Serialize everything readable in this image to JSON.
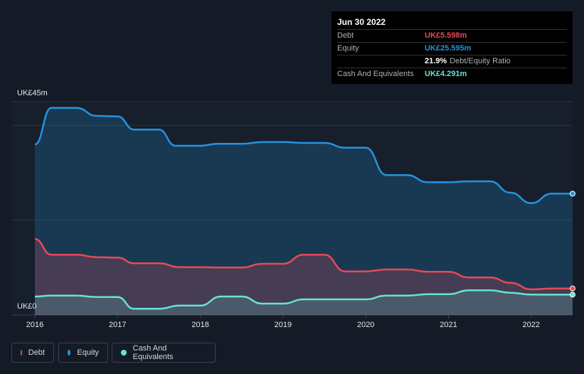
{
  "chart_data": {
    "type": "area",
    "x_ticks": [
      "2016",
      "2017",
      "2018",
      "2019",
      "2020",
      "2021",
      "2022"
    ],
    "y_ticks": [
      "UK£45m",
      "UK£0"
    ],
    "ylim": [
      0,
      45
    ],
    "grid": true,
    "series": [
      {
        "name": "Equity",
        "color": "#2394df",
        "x": [
          2016.0,
          2016.2,
          2016.5,
          2016.75,
          2017.0,
          2017.2,
          2017.5,
          2017.7,
          2018.0,
          2018.2,
          2018.5,
          2018.75,
          2019.0,
          2019.25,
          2019.5,
          2019.75,
          2020.0,
          2020.25,
          2020.5,
          2020.75,
          2021.0,
          2021.25,
          2021.5,
          2021.75,
          2022.0,
          2022.25,
          2022.5
        ],
        "values": [
          36.0,
          43.7,
          43.7,
          42.0,
          41.9,
          39.1,
          39.1,
          35.7,
          35.7,
          36.1,
          36.1,
          36.5,
          36.5,
          36.3,
          36.3,
          35.3,
          35.3,
          29.5,
          29.5,
          28.0,
          28.0,
          28.2,
          28.2,
          25.8,
          23.6,
          25.6,
          25.595
        ]
      },
      {
        "name": "Debt",
        "color": "#e64a57",
        "x": [
          2016.0,
          2016.2,
          2016.5,
          2016.75,
          2017.0,
          2017.2,
          2017.5,
          2017.75,
          2018.0,
          2018.25,
          2018.5,
          2018.75,
          2019.0,
          2019.25,
          2019.5,
          2019.75,
          2020.0,
          2020.25,
          2020.5,
          2020.75,
          2021.0,
          2021.25,
          2021.5,
          2021.75,
          2022.0,
          2022.25,
          2022.5
        ],
        "values": [
          16.0,
          12.7,
          12.7,
          12.2,
          12.1,
          10.9,
          10.9,
          10.1,
          10.1,
          10.0,
          10.0,
          10.8,
          10.8,
          12.7,
          12.7,
          9.2,
          9.2,
          9.6,
          9.6,
          9.1,
          9.1,
          7.9,
          7.9,
          6.8,
          5.4,
          5.6,
          5.598
        ]
      },
      {
        "name": "Cash And Equivalents",
        "color": "#66e4d3",
        "x": [
          2016.0,
          2016.2,
          2016.5,
          2016.75,
          2017.0,
          2017.2,
          2017.5,
          2017.75,
          2018.0,
          2018.25,
          2018.5,
          2018.75,
          2019.0,
          2019.25,
          2019.5,
          2019.75,
          2020.0,
          2020.25,
          2020.5,
          2020.75,
          2021.0,
          2021.25,
          2021.5,
          2021.75,
          2022.0,
          2022.25,
          2022.5
        ],
        "values": [
          3.9,
          4.1,
          4.1,
          3.8,
          3.8,
          1.3,
          1.3,
          2.0,
          2.0,
          3.9,
          3.9,
          2.4,
          2.4,
          3.3,
          3.3,
          3.3,
          3.3,
          4.1,
          4.1,
          4.4,
          4.4,
          5.2,
          5.2,
          4.7,
          4.3,
          4.29,
          4.291
        ]
      }
    ]
  },
  "tooltip": {
    "date": "Jun 30 2022",
    "rows": [
      {
        "label": "Debt",
        "value": "UK£5.598m",
        "color": "#e64a57",
        "extra": ""
      },
      {
        "label": "Equity",
        "value": "UK£25.595m",
        "color": "#2394df",
        "extra": ""
      },
      {
        "label": "",
        "value": "21.9%",
        "color": "#ffffff",
        "extra": "Debt/Equity Ratio"
      },
      {
        "label": "Cash And Equivalents",
        "value": "UK£4.291m",
        "color": "#66e4d3",
        "extra": ""
      }
    ]
  },
  "legend": [
    {
      "label": "Debt",
      "color": "#e64a57"
    },
    {
      "label": "Equity",
      "color": "#2394df"
    },
    {
      "label": "Cash And Equivalents",
      "color": "#66e4d3"
    }
  ]
}
